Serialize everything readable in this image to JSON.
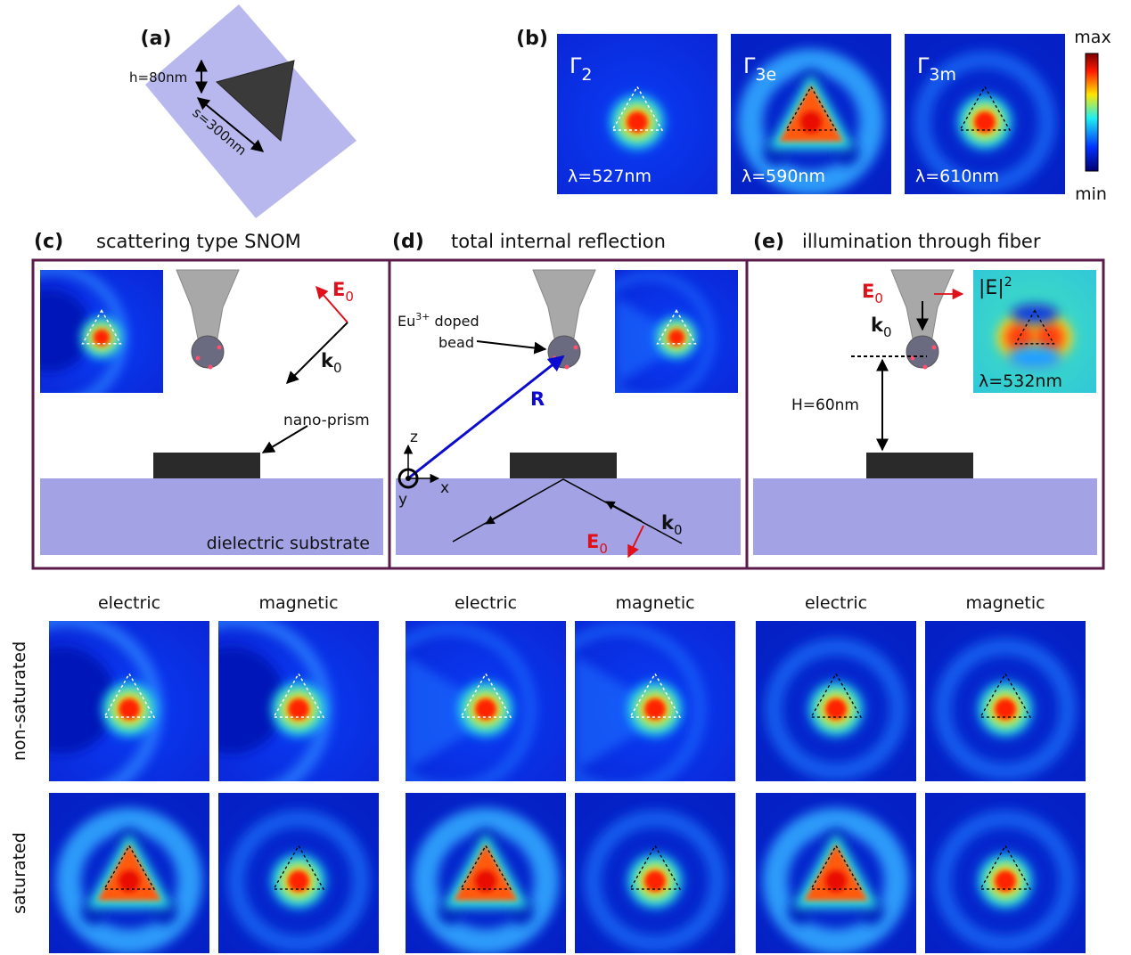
{
  "panel_a": {
    "label": "(a)",
    "height": "h=80nm",
    "side": "s=300nm"
  },
  "panel_b": {
    "label": "(b)",
    "modes": [
      {
        "name": "Γ",
        "sub": "2",
        "wavelength": "λ=527nm"
      },
      {
        "name": "Γ",
        "sub": "3e",
        "wavelength": "λ=590nm"
      },
      {
        "name": "Γ",
        "sub": "3m",
        "wavelength": "λ=610nm"
      }
    ],
    "colorbar": {
      "max": "max",
      "min": "min"
    }
  },
  "panel_c": {
    "label": "(c)",
    "title": "scattering type SNOM",
    "field": {
      "main": "E",
      "sub": "0"
    },
    "wavevector": {
      "main": "k",
      "sub": "0"
    },
    "prism": "nano-prism",
    "substrate": "dielectric substrate"
  },
  "panel_d": {
    "label": "(d)",
    "title": "total internal reflection",
    "bead": {
      "main": "Eu",
      "sup": "3+",
      "rest": " doped",
      "line2": "bead"
    },
    "position": "R",
    "axes": {
      "z": "z",
      "x": "x",
      "y": "y"
    },
    "field": {
      "main": "E",
      "sub": "0"
    },
    "wavevector": {
      "main": "k",
      "sub": "0"
    }
  },
  "panel_e": {
    "label": "(e)",
    "title": "illumination through fiber",
    "field": {
      "main": "E",
      "sub": "0"
    },
    "wavevector": {
      "main": "k",
      "sub": "0"
    },
    "intensity": {
      "main": "|E|",
      "sup": "2"
    },
    "wavelength": "λ=532nm",
    "distance": "H=60nm"
  },
  "maps": {
    "columns": [
      "electric",
      "magnetic",
      "electric",
      "magnetic",
      "electric",
      "magnetic"
    ],
    "rows": [
      "non-saturated",
      "saturated"
    ]
  }
}
